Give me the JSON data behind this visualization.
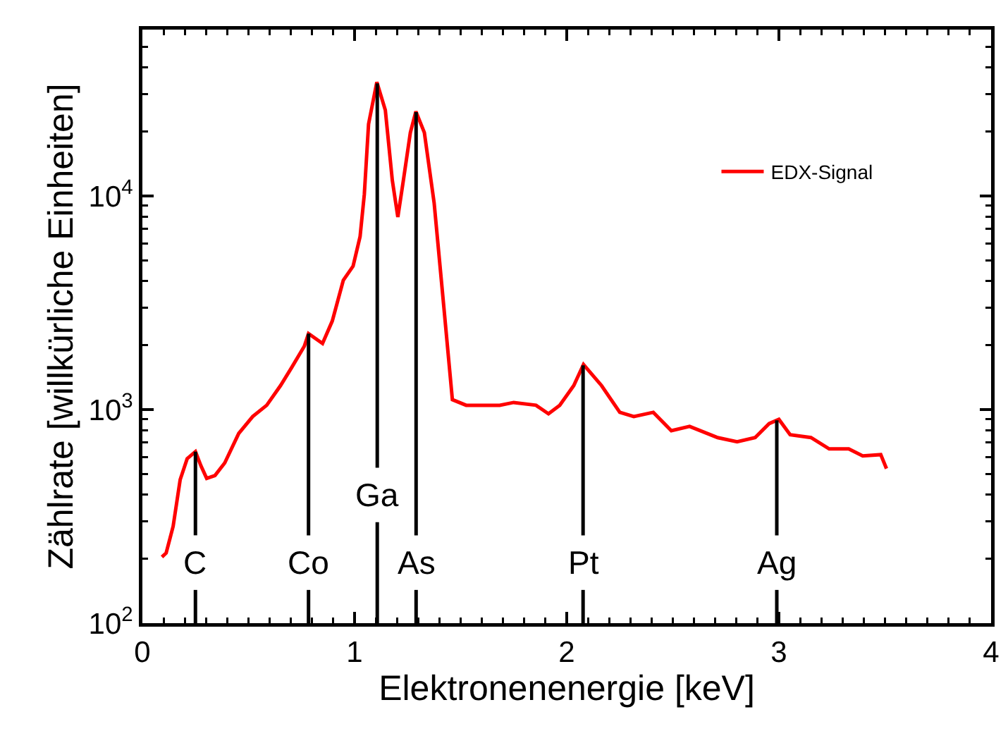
{
  "chart_data": {
    "type": "line",
    "xlabel": "Elektronenenergie [keV]",
    "ylabel": "Zählrate [willkürliche Einheiten]",
    "x": [
      0.092,
      0.112,
      0.145,
      0.178,
      0.211,
      0.25,
      0.276,
      0.303,
      0.342,
      0.388,
      0.454,
      0.52,
      0.586,
      0.651,
      0.704,
      0.763,
      0.783,
      0.849,
      0.895,
      0.947,
      0.993,
      1.026,
      1.046,
      1.066,
      1.105,
      1.145,
      1.178,
      1.204,
      1.23,
      1.263,
      1.289,
      1.329,
      1.375,
      1.421,
      1.461,
      1.526,
      1.684,
      1.75,
      1.855,
      1.914,
      1.967,
      2.033,
      2.079,
      2.164,
      2.25,
      2.316,
      2.408,
      2.493,
      2.579,
      2.711,
      2.803,
      2.888,
      2.954,
      3.0,
      3.053,
      3.151,
      3.237,
      3.329,
      3.395,
      3.48,
      3.507
    ],
    "series": [
      {
        "name": "EDX-Signal",
        "color": "#ff0000",
        "values": [
          204,
          213,
          284,
          469,
          589,
          635,
          545,
          476,
          491,
          562,
          773,
          927,
          1047,
          1294,
          1575,
          1977,
          2265,
          2037,
          2597,
          4029,
          4688,
          6445,
          10160,
          21660,
          34100,
          25180,
          11810,
          7965,
          11810,
          19770,
          24830,
          19770,
          9270,
          3000,
          1112,
          1047,
          1047,
          1079,
          1047,
          955,
          1047,
          1294,
          1625,
          1294,
          970,
          927,
          970,
          796,
          834,
          739,
          706,
          739,
          859,
          899,
          762,
          739,
          654,
          654,
          607,
          615,
          529
        ]
      }
    ],
    "xlim": [
      0,
      4
    ],
    "xticks": [
      0,
      1,
      2,
      3,
      4
    ],
    "log": "y",
    "ylim": [
      100,
      60000
    ],
    "yticks": [
      {
        "value": 100,
        "label": "10$^{2}$"
      },
      {
        "value": 1000,
        "label": "10$^{3}$"
      },
      {
        "value": 10000,
        "label": "10$^{4}$"
      }
    ],
    "ref_lines": [
      {
        "axis": "x",
        "value": 0.25,
        "label": "C",
        "color": "#000000"
      },
      {
        "axis": "x",
        "value": 0.783,
        "label": "Co",
        "color": "#000000"
      },
      {
        "axis": "x",
        "value": 1.107,
        "label": "Ga",
        "color": "#000000"
      },
      {
        "axis": "x",
        "value": 1.29,
        "label": "As",
        "color": "#000000"
      },
      {
        "axis": "x",
        "value": 2.077,
        "label": "Pt",
        "color": "#000000"
      },
      {
        "axis": "x",
        "value": 2.99,
        "label": "Ag",
        "color": "#000000"
      }
    ],
    "grid": false,
    "legend": "top right",
    "marker": "none",
    "line_style": "solid"
  }
}
